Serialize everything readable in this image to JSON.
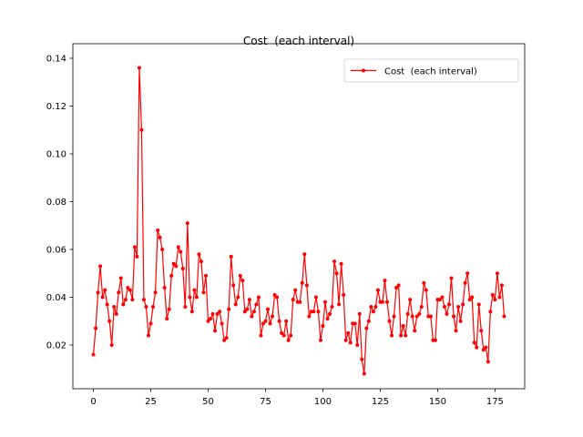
{
  "chart_data": {
    "type": "line",
    "title": "Cost  (each interval)",
    "x": [
      0,
      1,
      2,
      3,
      4,
      5,
      6,
      7,
      8,
      9,
      10,
      11,
      12,
      13,
      14,
      15,
      16,
      17,
      18,
      19,
      20,
      21,
      22,
      23,
      24,
      25,
      26,
      27,
      28,
      29,
      30,
      31,
      32,
      33,
      34,
      35,
      36,
      37,
      38,
      39,
      40,
      41,
      42,
      43,
      44,
      45,
      46,
      47,
      48,
      49,
      50,
      51,
      52,
      53,
      54,
      55,
      56,
      57,
      58,
      59,
      60,
      61,
      62,
      63,
      64,
      65,
      66,
      67,
      68,
      69,
      70,
      71,
      72,
      73,
      74,
      75,
      76,
      77,
      78,
      79,
      80,
      81,
      82,
      83,
      84,
      85,
      86,
      87,
      88,
      89,
      90,
      91,
      92,
      93,
      94,
      95,
      96,
      97,
      98,
      99,
      100,
      101,
      102,
      103,
      104,
      105,
      106,
      107,
      108,
      109,
      110,
      111,
      112,
      113,
      114,
      115,
      116,
      117,
      118,
      119,
      120,
      121,
      122,
      123,
      124,
      125,
      126,
      127,
      128,
      129,
      130,
      131,
      132,
      133,
      134,
      135,
      136,
      137,
      138,
      139,
      140,
      141,
      142,
      143,
      144,
      145,
      146,
      147,
      148,
      149,
      150,
      151,
      152,
      153,
      154,
      155,
      156,
      157,
      158,
      159,
      160,
      161,
      162,
      163,
      164,
      165,
      166,
      167,
      168,
      169,
      170,
      171,
      172,
      173,
      174,
      175,
      176,
      177,
      178,
      179
    ],
    "series": [
      {
        "name": "Cost  (each interval)",
        "color": "#ff0000",
        "values": [
          0.016,
          0.027,
          0.042,
          0.053,
          0.04,
          0.043,
          0.037,
          0.03,
          0.02,
          0.036,
          0.033,
          0.042,
          0.048,
          0.037,
          0.039,
          0.044,
          0.043,
          0.039,
          0.061,
          0.057,
          0.136,
          0.11,
          0.039,
          0.036,
          0.024,
          0.029,
          0.036,
          0.042,
          0.068,
          0.065,
          0.06,
          0.044,
          0.031,
          0.035,
          0.049,
          0.054,
          0.053,
          0.061,
          0.059,
          0.052,
          0.036,
          0.071,
          0.04,
          0.034,
          0.043,
          0.04,
          0.058,
          0.055,
          0.042,
          0.049,
          0.03,
          0.031,
          0.033,
          0.026,
          0.033,
          0.034,
          0.029,
          0.022,
          0.023,
          0.035,
          0.057,
          0.045,
          0.037,
          0.04,
          0.049,
          0.047,
          0.034,
          0.035,
          0.039,
          0.032,
          0.034,
          0.037,
          0.04,
          0.024,
          0.029,
          0.03,
          0.035,
          0.029,
          0.032,
          0.041,
          0.04,
          0.03,
          0.025,
          0.024,
          0.03,
          0.022,
          0.024,
          0.039,
          0.043,
          0.038,
          0.038,
          0.046,
          0.058,
          0.045,
          0.032,
          0.034,
          0.034,
          0.04,
          0.034,
          0.022,
          0.028,
          0.038,
          0.031,
          0.033,
          0.036,
          0.055,
          0.05,
          0.037,
          0.054,
          0.041,
          0.022,
          0.025,
          0.021,
          0.029,
          0.029,
          0.02,
          0.033,
          0.014,
          0.008,
          0.027,
          0.03,
          0.036,
          0.034,
          0.036,
          0.043,
          0.038,
          0.038,
          0.047,
          0.038,
          0.03,
          0.024,
          0.032,
          0.044,
          0.045,
          0.024,
          0.028,
          0.024,
          0.033,
          0.039,
          0.032,
          0.026,
          0.032,
          0.033,
          0.036,
          0.046,
          0.043,
          0.032,
          0.032,
          0.022,
          0.022,
          0.039,
          0.039,
          0.04,
          0.036,
          0.033,
          0.037,
          0.048,
          0.032,
          0.026,
          0.036,
          0.03,
          0.037,
          0.046,
          0.05,
          0.039,
          0.04,
          0.021,
          0.019,
          0.037,
          0.026,
          0.018,
          0.019,
          0.013,
          0.034,
          0.041,
          0.039,
          0.05,
          0.04,
          0.045,
          0.032
        ]
      }
    ],
    "xlim": [
      -8.95,
      187.95
    ],
    "xticks": [
      0,
      25,
      50,
      75,
      100,
      125,
      150,
      175
    ],
    "ylim": [
      0.0017,
      0.1461
    ],
    "yticks": [
      0.02,
      0.04,
      0.06,
      0.08,
      {
        "value": 0.1,
        "label": "0.10"
      },
      0.12,
      0.14
    ],
    "legend": "upper right"
  }
}
